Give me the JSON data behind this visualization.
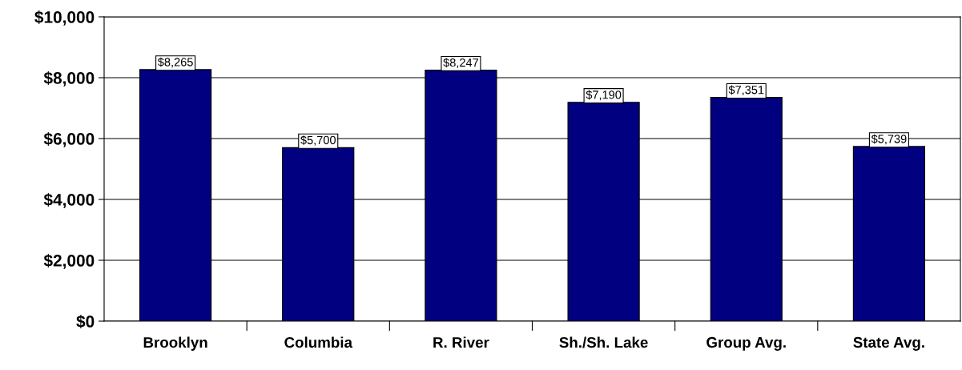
{
  "chart_data": {
    "type": "bar",
    "categories": [
      "Brooklyn",
      "Columbia",
      "R. River",
      "Sh./Sh. Lake",
      "Group Avg.",
      "State Avg."
    ],
    "values": [
      8265,
      5700,
      8247,
      7190,
      7351,
      5739
    ],
    "value_labels": [
      "$8,265",
      "$5,700",
      "$8,247",
      "$7,190",
      "$7,351",
      "$5,739"
    ],
    "color": "#000080",
    "ylim": [
      0,
      10000
    ],
    "yticks": [
      {
        "value": 0,
        "label": "$0"
      },
      {
        "value": 2000,
        "label": "$2,000"
      },
      {
        "value": 4000,
        "label": "$4,000"
      },
      {
        "value": 6000,
        "label": "$6,000"
      },
      {
        "value": 8000,
        "label": "$8,000"
      },
      {
        "value": 10000,
        "label": "$10,000"
      }
    ],
    "grid": "y",
    "legend": false
  }
}
